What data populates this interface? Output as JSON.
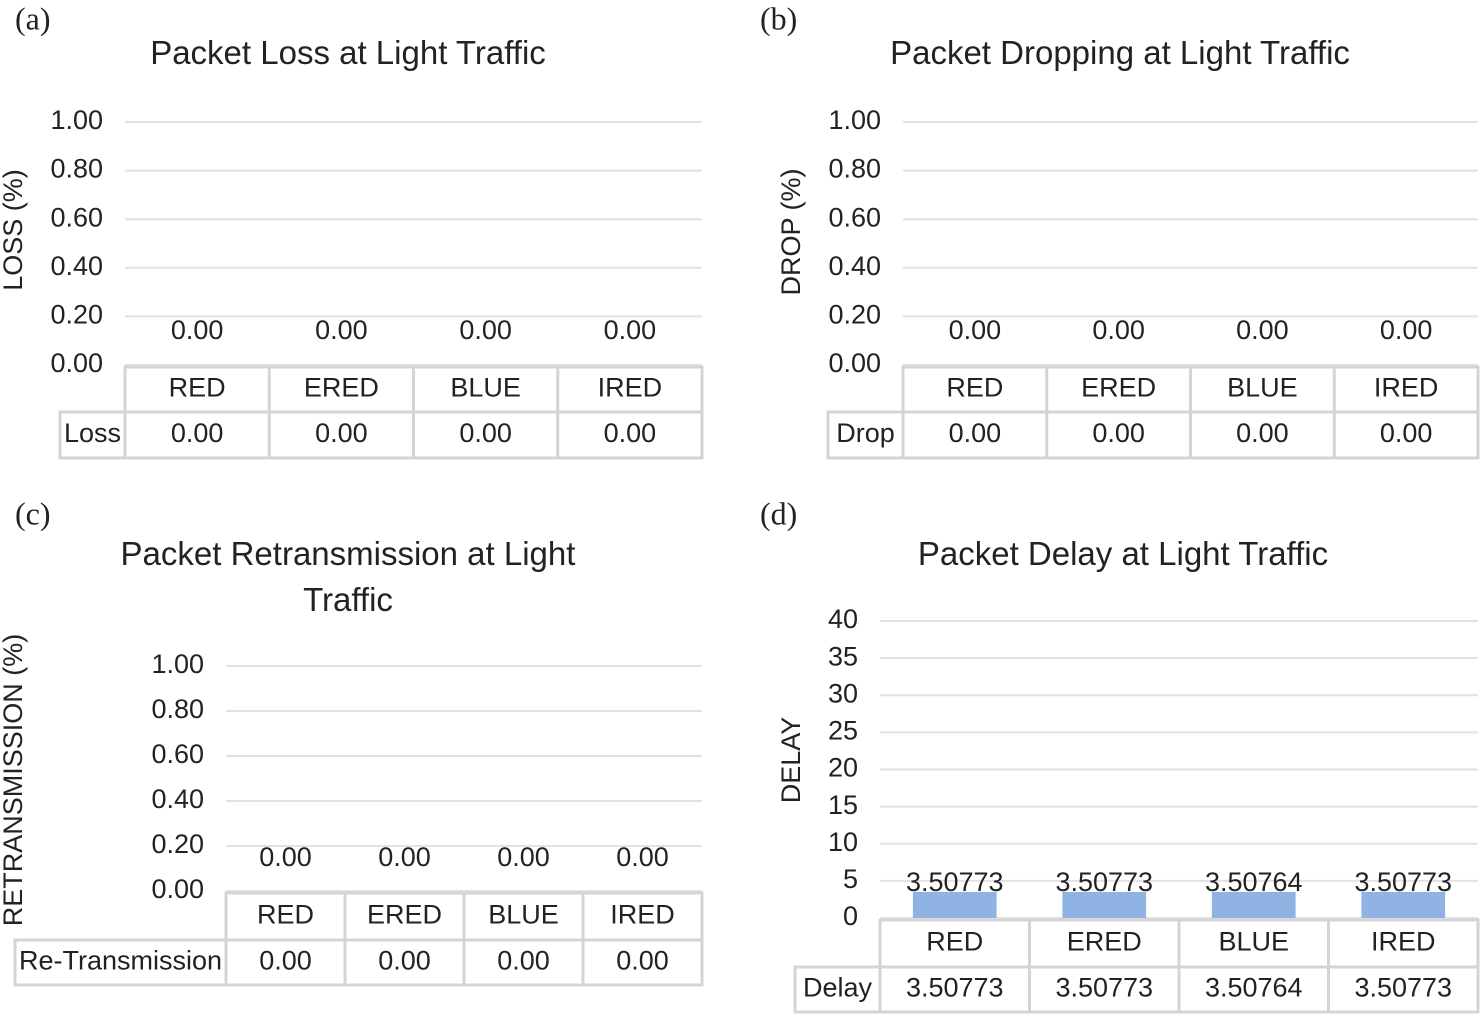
{
  "chart_data": [
    {
      "type": "bar",
      "panel_label": "(a)",
      "title": "Packet Loss at Light Traffic",
      "y_label": "LOSS (%)",
      "categories": [
        "RED",
        "ERED",
        "BLUE",
        "IRED"
      ],
      "series": [
        {
          "name": "Loss",
          "color": "#8fb4e3",
          "values": [
            0,
            0,
            0,
            0
          ],
          "value_labels": [
            "0.00",
            "0.00",
            "0.00",
            "0.00"
          ]
        }
      ],
      "ylim": [
        0,
        1
      ],
      "yticks": [
        {
          "value": 0,
          "label": "0.00"
        },
        {
          "value": 0.2,
          "label": "0.20"
        },
        {
          "value": 0.4,
          "label": "0.40"
        },
        {
          "value": 0.6,
          "label": "0.60"
        },
        {
          "value": 0.8,
          "label": "0.80"
        },
        {
          "value": 1,
          "label": "1.00"
        }
      ],
      "grid": true
    },
    {
      "type": "bar",
      "panel_label": "(b)",
      "title": "Packet Dropping at Light Traffic",
      "y_label": "DROP (%)",
      "categories": [
        "RED",
        "ERED",
        "BLUE",
        "IRED"
      ],
      "series": [
        {
          "name": "Drop",
          "color": "#8fb4e3",
          "values": [
            0,
            0,
            0,
            0
          ],
          "value_labels": [
            "0.00",
            "0.00",
            "0.00",
            "0.00"
          ]
        }
      ],
      "ylim": [
        0,
        1
      ],
      "yticks": [
        {
          "value": 0,
          "label": "0.00"
        },
        {
          "value": 0.2,
          "label": "0.20"
        },
        {
          "value": 0.4,
          "label": "0.40"
        },
        {
          "value": 0.6,
          "label": "0.60"
        },
        {
          "value": 0.8,
          "label": "0.80"
        },
        {
          "value": 1,
          "label": "1.00"
        }
      ],
      "grid": true
    },
    {
      "type": "bar",
      "panel_label": "(c)",
      "title": "Packet Retransmission at Light Traffic",
      "y_label": "RETRANSMISSION (%)",
      "categories": [
        "RED",
        "ERED",
        "BLUE",
        "IRED"
      ],
      "series": [
        {
          "name": "Re-Transmission",
          "color": "#8fb4e3",
          "values": [
            0,
            0,
            0,
            0
          ],
          "value_labels": [
            "0.00",
            "0.00",
            "0.00",
            "0.00"
          ]
        }
      ],
      "ylim": [
        0,
        1
      ],
      "yticks": [
        {
          "value": 0,
          "label": "0.00"
        },
        {
          "value": 0.2,
          "label": "0.20"
        },
        {
          "value": 0.4,
          "label": "0.40"
        },
        {
          "value": 0.6,
          "label": "0.60"
        },
        {
          "value": 0.8,
          "label": "0.80"
        },
        {
          "value": 1,
          "label": "1.00"
        }
      ],
      "grid": true
    },
    {
      "type": "bar",
      "panel_label": "(d)",
      "title": "Packet Delay at Light Traffic",
      "y_label": "DELAY",
      "categories": [
        "RED",
        "ERED",
        "BLUE",
        "IRED"
      ],
      "series": [
        {
          "name": "Delay",
          "color": "#8fb4e3",
          "values": [
            3.50773,
            3.50773,
            3.50764,
            3.50773
          ]
        }
      ],
      "ylim": [
        0,
        40
      ],
      "yticks": [
        0,
        5,
        10,
        15,
        20,
        25,
        30,
        35,
        40
      ],
      "grid": true
    }
  ]
}
